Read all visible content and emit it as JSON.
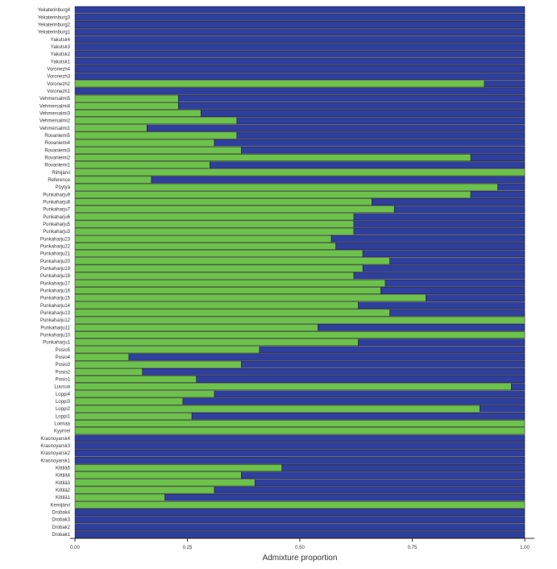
{
  "chart_data": {
    "type": "bar",
    "orientation": "horizontal",
    "stacked": true,
    "xlabel": "Admixture proportion",
    "xlim": [
      0,
      1
    ],
    "xticks": [
      "0.00",
      "0.25",
      "0.50",
      "0.75",
      "1.00"
    ],
    "legend": "none",
    "colors": {
      "green": "#6cc24a",
      "blue": "#2f3f9e",
      "edge": "#1a1a1a"
    },
    "categories": [
      "Yekaterinburg4",
      "Yekaterinburg3",
      "Yekaterinburg2",
      "Yekaterinburg1",
      "Yakutsk4",
      "Yakutsk3",
      "Yakutsk2",
      "Yakutsk1",
      "Voronezh4",
      "Voronezh3",
      "Voronezh2",
      "Voronezh1",
      "Vehmersalmi5",
      "Vehmersalmi4",
      "Vehmersalmi3",
      "Vehmersalmi2",
      "Vehmersalmi1",
      "Rovaniemi5",
      "Rovaniemi4",
      "Rovaniemi3",
      "Rovaniemi2",
      "Rovaniemi1",
      "Riihijärvi",
      "Reference",
      "Pöytyä",
      "Punkaharju9",
      "Punkaharju8",
      "Punkaharju7",
      "Punkaharju6",
      "Punkaharju5",
      "Punkaharju3",
      "Punkaharju23",
      "Punkaharju22",
      "Punkaharju21",
      "Punkaharju20",
      "Punkaharju19",
      "Punkaharju18",
      "Punkaharju17",
      "Punkaharju16",
      "Punkaharju15",
      "Punkaharju14",
      "Punkaharju13",
      "Punkaharju12",
      "Punkaharju11",
      "Punkaharju10",
      "Punkaharju1",
      "Posio5",
      "Posio4",
      "Posio3",
      "Posio2",
      "Posio1",
      "Luusua",
      "Loppi4",
      "Loppi3",
      "Loppi2",
      "Loppi1",
      "Loimaa",
      "Kyyrnel",
      "Krasnoyarsk4",
      "Krasnoyarsk3",
      "Krasnoyarsk2",
      "Krasnoyarsk1",
      "Kittilä5",
      "Kittilä4",
      "Kittilä3",
      "Kittilä2",
      "Kittilä1",
      "Kemijärvi",
      "Drobak4",
      "Drobak3",
      "Drobak2",
      "Drobak1"
    ],
    "series": [
      {
        "values": [
          0,
          0,
          0,
          0,
          0,
          0,
          0,
          0,
          0,
          0,
          0.91,
          0,
          0.23,
          0.23,
          0.28,
          0.36,
          0.16,
          0.36,
          0.31,
          0.37,
          0.88,
          0.3,
          1.0,
          0.17,
          0.94,
          0.88,
          0.66,
          0.71,
          0.62,
          0.62,
          0.62,
          0.57,
          0.58,
          0.64,
          0.7,
          0.64,
          0.62,
          0.69,
          0.68,
          0.78,
          0.63,
          0.7,
          1.0,
          0.54,
          1.0,
          0.63,
          0.41,
          0.12,
          0.37,
          0.15,
          0.27,
          0.97,
          0.31,
          0.24,
          0.9,
          0.26,
          1.0,
          1.0,
          0,
          0,
          0,
          0,
          0.46,
          0.37,
          0.4,
          0.31,
          0.2,
          1.0,
          0,
          0,
          0,
          0
        ]
      },
      {
        "values": [
          1,
          1,
          1,
          1,
          1,
          1,
          1,
          1,
          1,
          1,
          0.09,
          1,
          0.77,
          0.77,
          0.72,
          0.64,
          0.84,
          0.64,
          0.69,
          0.63,
          0.12,
          0.7,
          0.0,
          0.83,
          0.06,
          0.12,
          0.34,
          0.29,
          0.38,
          0.38,
          0.38,
          0.43,
          0.42,
          0.36,
          0.3,
          0.36,
          0.38,
          0.31,
          0.32,
          0.22,
          0.37,
          0.3,
          0.0,
          0.46,
          0.0,
          0.37,
          0.59,
          0.88,
          0.63,
          0.85,
          0.73,
          0.03,
          0.69,
          0.76,
          0.1,
          0.74,
          0.0,
          0.0,
          1,
          1,
          1,
          1,
          0.54,
          0.63,
          0.6,
          0.69,
          0.8,
          0.0,
          1,
          1,
          1,
          1
        ]
      }
    ]
  }
}
